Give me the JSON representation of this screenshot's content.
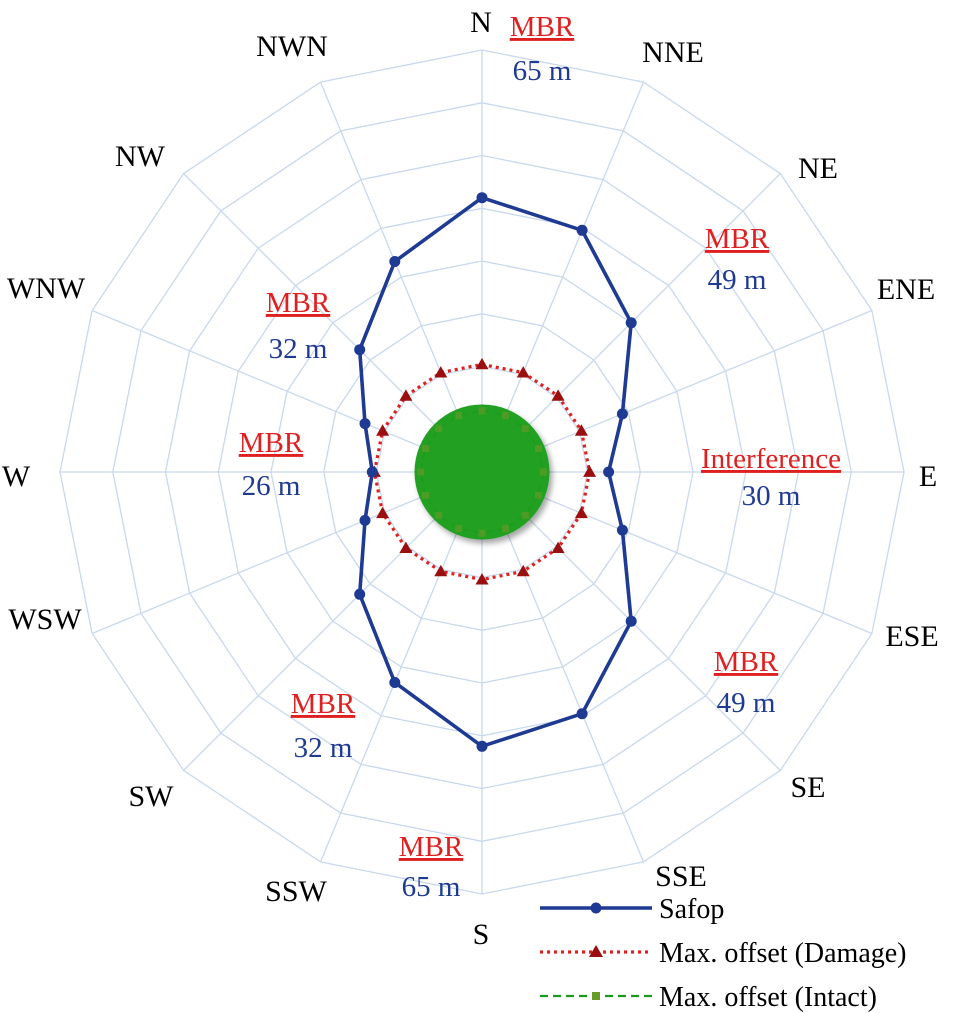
{
  "chart_data": {
    "type": "radar",
    "title": "",
    "directions": [
      "N",
      "NNE",
      "NE",
      "ENE",
      "E",
      "ESE",
      "SE",
      "SSE",
      "S",
      "SSW",
      "SW",
      "WSW",
      "W",
      "WNW",
      "NW",
      "NWN"
    ],
    "r_max": 100,
    "grid_levels": 8,
    "grid": true,
    "legend_placement": "bottom-right",
    "series": [
      {
        "name": "Safop",
        "color": "#1f3a93",
        "marker": "circle",
        "line_style": "solid",
        "values": [
          65,
          62,
          50,
          36,
          30,
          36,
          50,
          62,
          65,
          54,
          41,
          30,
          26,
          30,
          41,
          54
        ]
      },
      {
        "name": "Max. offset (Damage)",
        "color": "#e02020",
        "marker_color": "#9a1010",
        "marker": "triangle",
        "line_style": "dotted",
        "values": [
          25.5,
          25.5,
          25.5,
          25.5,
          25.5,
          25.5,
          25.5,
          25.5,
          25.5,
          25.5,
          25.5,
          25.5,
          25.5,
          25.5,
          25.5,
          25.5
        ]
      },
      {
        "name": "Max. offset (Intact)",
        "color": "#1a9a1a",
        "marker_color": "#6a9a2a",
        "marker": "square",
        "line_style": "dashed",
        "values": [
          14.5,
          14.5,
          14.5,
          14.5,
          14.5,
          14.5,
          14.5,
          14.5,
          14.5,
          14.5,
          14.5,
          14.5,
          14.5,
          14.5,
          14.5,
          14.5
        ]
      }
    ],
    "fill_disk": {
      "value": 16,
      "color": "#22a022"
    },
    "annotations": [
      {
        "title": "MBR",
        "value": "65 m"
      },
      {
        "title": "MBR",
        "value": "49 m"
      },
      {
        "title": "Interference",
        "value": "30 m"
      },
      {
        "title": "MBR",
        "value": "49 m"
      },
      {
        "title": "MBR",
        "value": "65 m"
      },
      {
        "title": "MBR",
        "value": "32 m"
      },
      {
        "title": "MBR",
        "value": "26 m"
      },
      {
        "title": "MBR",
        "value": "32 m"
      }
    ],
    "annotation_title_color": "#e02020",
    "annotation_value_color": "#1f3a93"
  }
}
